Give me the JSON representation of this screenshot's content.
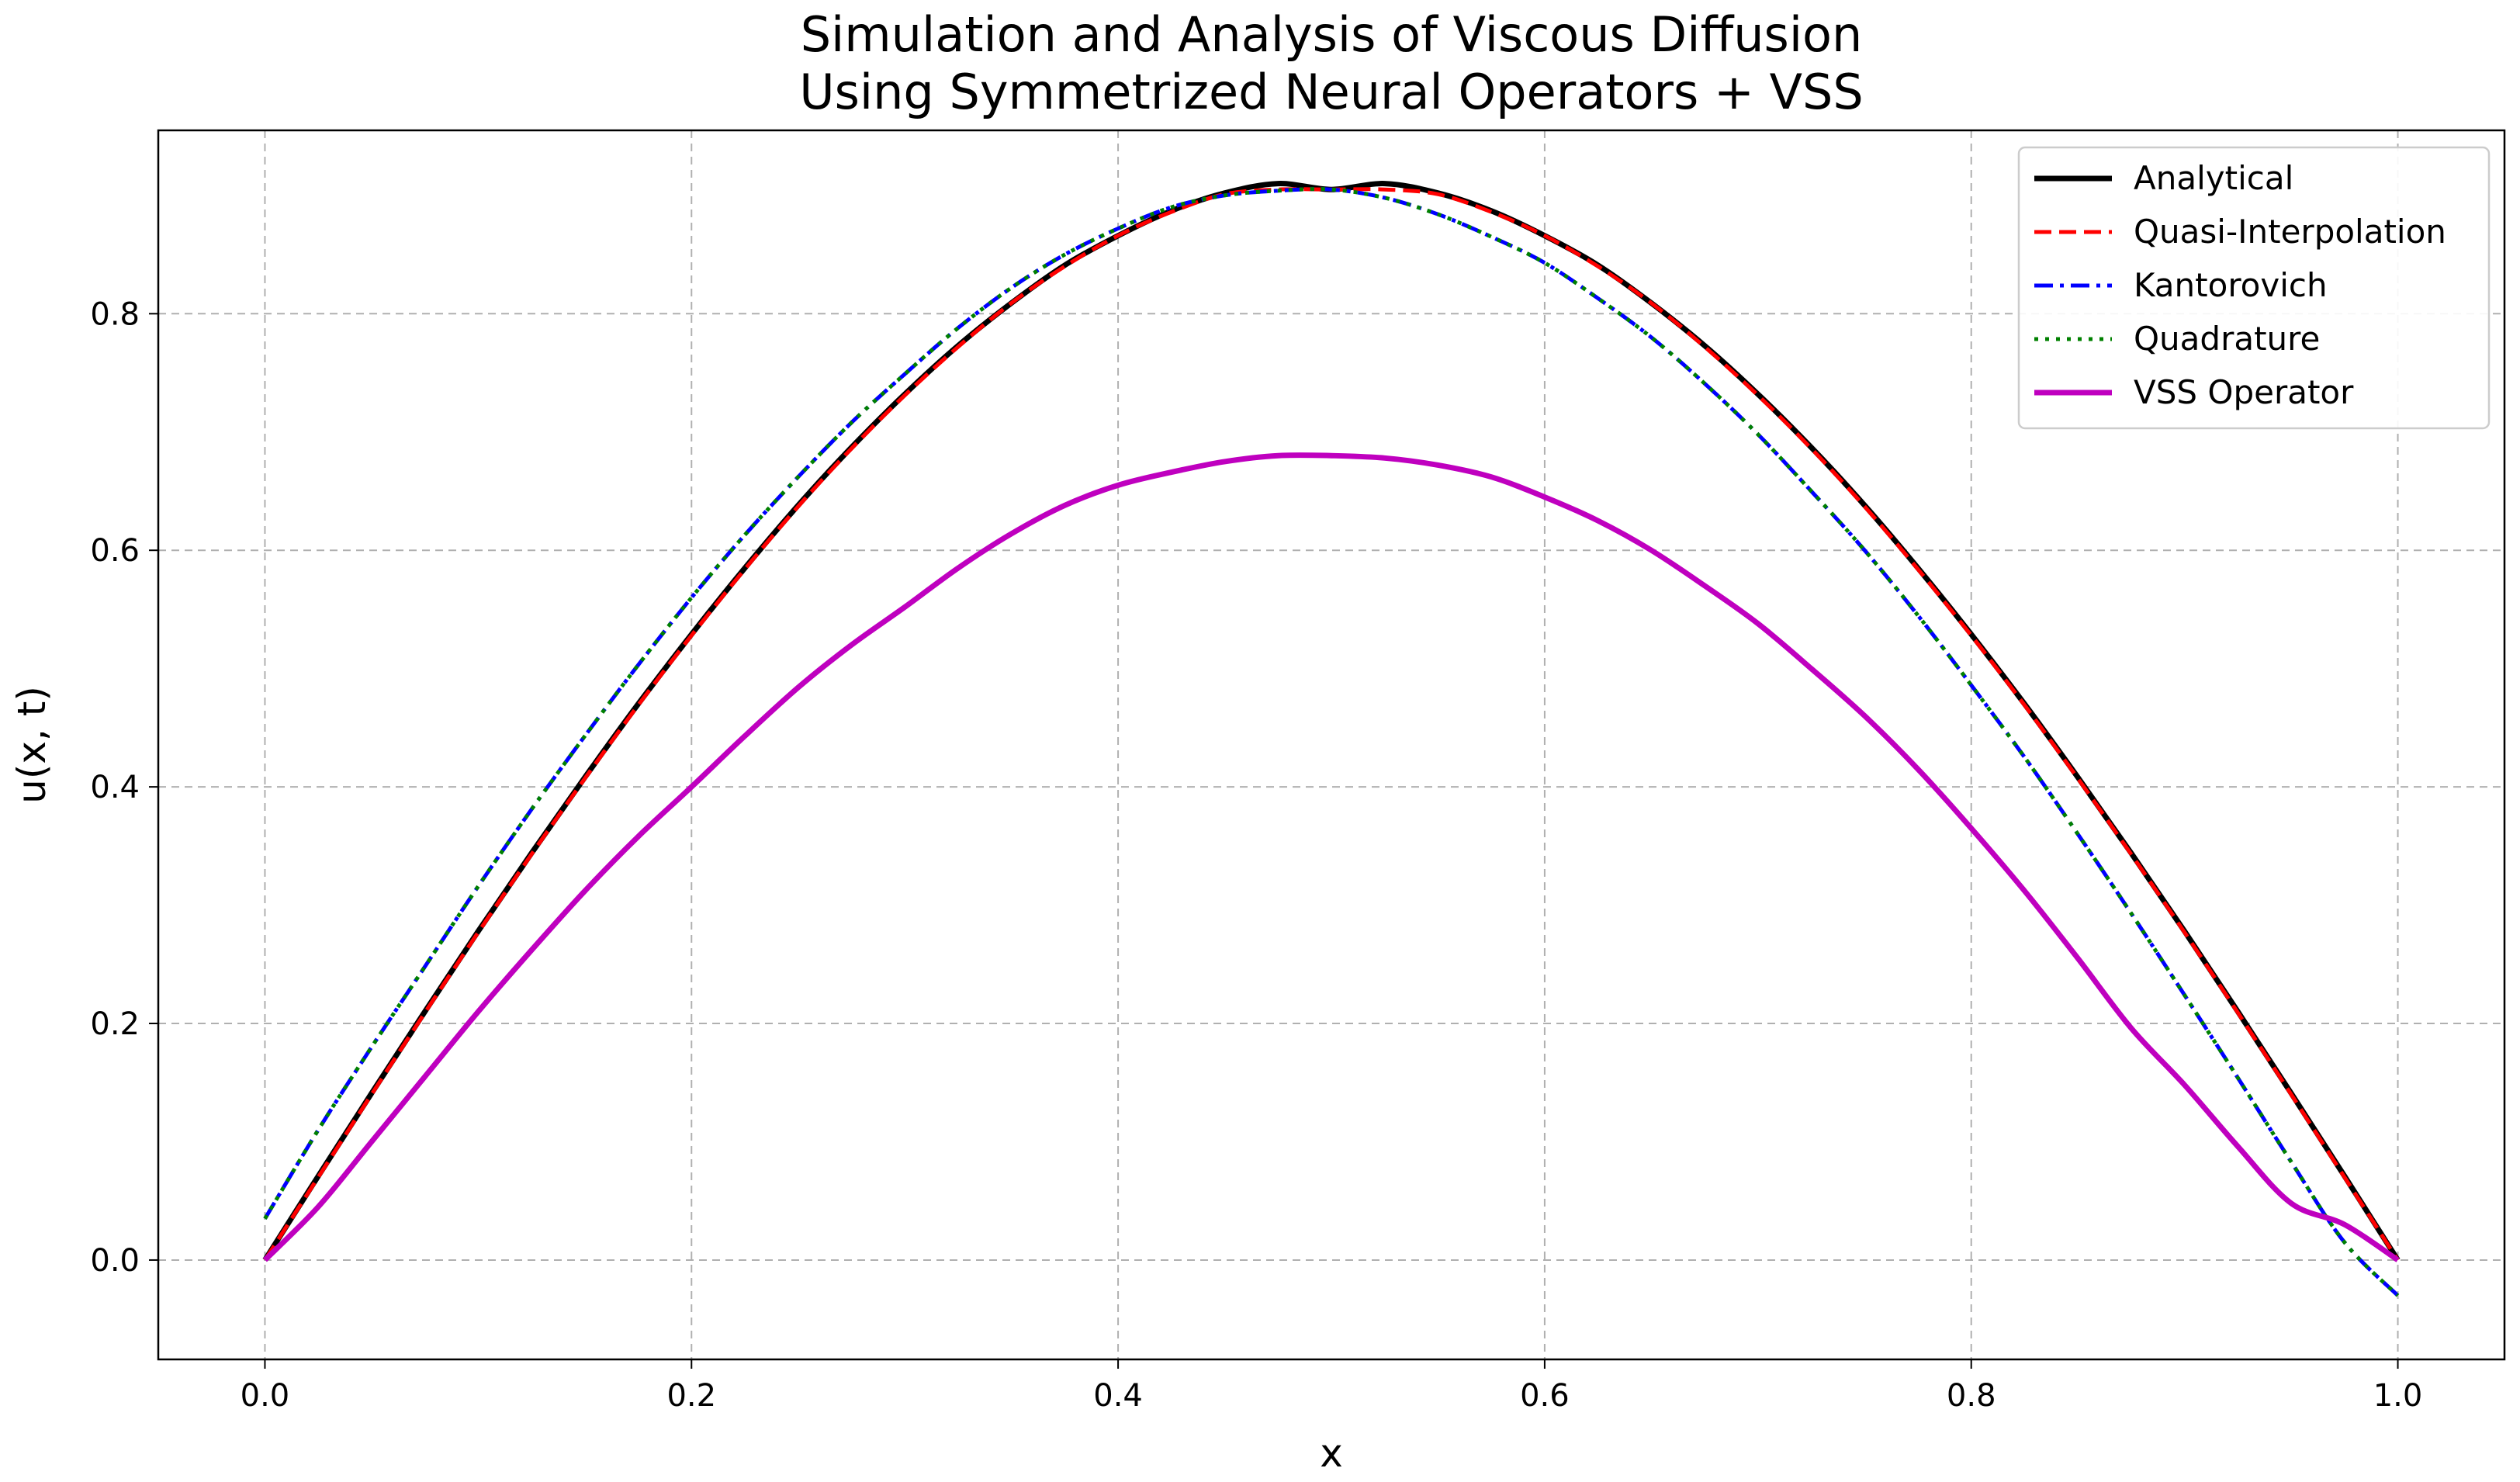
{
  "chart_data": {
    "type": "line",
    "title": "Simulation and Analysis of Viscous Diffusion",
    "subtitle": "Using Symmetrized Neural Operators + VSS",
    "xlabel": "x",
    "ylabel": "u(x, t)",
    "xlim": [
      -0.05,
      1.05
    ],
    "ylim": [
      -0.084,
      0.955
    ],
    "xticks": [
      0.0,
      0.2,
      0.4,
      0.6,
      0.8,
      1.0
    ],
    "xtick_labels": [
      "0.0",
      "0.2",
      "0.4",
      "0.6",
      "0.8",
      "1.0"
    ],
    "yticks": [
      0.0,
      0.2,
      0.4,
      0.6,
      0.8
    ],
    "ytick_labels": [
      "0.0",
      "0.2",
      "0.4",
      "0.6",
      "0.8"
    ],
    "grid": true,
    "legend_position": "top-right",
    "x": [
      0.0,
      0.025,
      0.05,
      0.075,
      0.1,
      0.125,
      0.15,
      0.175,
      0.2,
      0.225,
      0.25,
      0.275,
      0.3,
      0.325,
      0.35,
      0.375,
      0.4,
      0.425,
      0.45,
      0.475,
      0.5,
      0.525,
      0.55,
      0.575,
      0.6,
      0.625,
      0.65,
      0.675,
      0.7,
      0.725,
      0.75,
      0.775,
      0.8,
      0.825,
      0.85,
      0.875,
      0.9,
      0.925,
      0.95,
      0.975,
      1.0
    ],
    "series": [
      {
        "name": "Analytical",
        "color": "#000000",
        "style": "solid",
        "values": [
          0.0,
          0.071,
          0.141,
          0.21,
          0.278,
          0.344,
          0.408,
          0.47,
          0.529,
          0.585,
          0.638,
          0.687,
          0.732,
          0.773,
          0.809,
          0.841,
          0.866,
          0.887,
          0.902,
          0.91,
          0.905,
          0.91,
          0.902,
          0.887,
          0.866,
          0.841,
          0.809,
          0.773,
          0.732,
          0.687,
          0.638,
          0.585,
          0.529,
          0.47,
          0.408,
          0.344,
          0.278,
          0.21,
          0.141,
          0.071,
          0.0
        ]
      },
      {
        "name": "Quasi-Interpolation",
        "color": "#ff0000",
        "style": "dashed",
        "values": [
          0.0,
          0.07,
          0.14,
          0.209,
          0.277,
          0.343,
          0.407,
          0.469,
          0.528,
          0.584,
          0.637,
          0.686,
          0.731,
          0.772,
          0.809,
          0.84,
          0.866,
          0.886,
          0.901,
          0.905,
          0.905,
          0.905,
          0.901,
          0.886,
          0.866,
          0.84,
          0.809,
          0.772,
          0.731,
          0.686,
          0.637,
          0.584,
          0.528,
          0.469,
          0.407,
          0.343,
          0.277,
          0.209,
          0.14,
          0.07,
          0.0
        ]
      },
      {
        "name": "Kantorovich",
        "color": "#0000ff",
        "style": "dashdot",
        "values": [
          0.035,
          0.11,
          0.18,
          0.248,
          0.316,
          0.381,
          0.443,
          0.503,
          0.56,
          0.613,
          0.662,
          0.708,
          0.749,
          0.788,
          0.822,
          0.85,
          0.872,
          0.89,
          0.9,
          0.904,
          0.905,
          0.898,
          0.884,
          0.865,
          0.843,
          0.813,
          0.78,
          0.741,
          0.698,
          0.65,
          0.6,
          0.545,
          0.486,
          0.425,
          0.36,
          0.293,
          0.224,
          0.154,
          0.083,
          0.015,
          -0.03
        ]
      },
      {
        "name": "Quadrature",
        "color": "#008000",
        "style": "dotted",
        "values": [
          0.035,
          0.11,
          0.18,
          0.248,
          0.316,
          0.381,
          0.443,
          0.503,
          0.56,
          0.613,
          0.662,
          0.708,
          0.749,
          0.788,
          0.822,
          0.85,
          0.872,
          0.89,
          0.9,
          0.904,
          0.905,
          0.898,
          0.884,
          0.865,
          0.843,
          0.813,
          0.78,
          0.741,
          0.698,
          0.65,
          0.6,
          0.545,
          0.486,
          0.425,
          0.36,
          0.293,
          0.224,
          0.154,
          0.083,
          0.015,
          -0.03
        ]
      },
      {
        "name": "VSS Operator",
        "color": "#bf00bf",
        "style": "solid",
        "values": [
          0.0,
          0.045,
          0.1,
          0.155,
          0.21,
          0.262,
          0.312,
          0.358,
          0.4,
          0.443,
          0.484,
          0.52,
          0.552,
          0.585,
          0.614,
          0.638,
          0.655,
          0.666,
          0.675,
          0.68,
          0.68,
          0.678,
          0.672,
          0.662,
          0.645,
          0.625,
          0.6,
          0.57,
          0.538,
          0.5,
          0.46,
          0.415,
          0.365,
          0.312,
          0.255,
          0.196,
          0.148,
          0.096,
          0.048,
          0.03,
          0.0
        ]
      }
    ]
  }
}
